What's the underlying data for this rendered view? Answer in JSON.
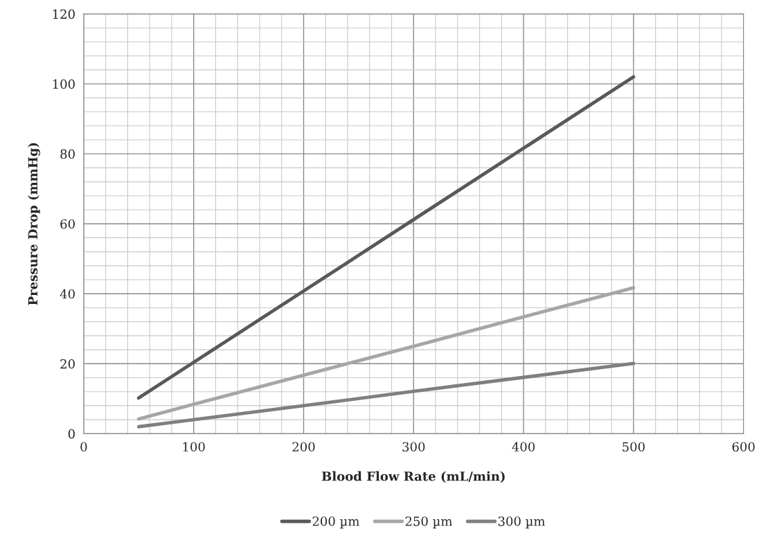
{
  "chart_data": {
    "type": "line",
    "xlabel": "Blood Flow Rate (mL/min)",
    "ylabel": "Pressure Drop (mmHg)",
    "x": [
      50,
      100,
      200,
      300,
      400,
      500
    ],
    "series": [
      {
        "name": "200 µm",
        "color": "#595959",
        "values": [
          10.2,
          20.4,
          40.8,
          61.2,
          81.6,
          102
        ]
      },
      {
        "name": "250 µm",
        "color": "#a6a6a6",
        "values": [
          4.2,
          8.4,
          16.7,
          25.0,
          33.4,
          41.7
        ]
      },
      {
        "name": "300 µm",
        "color": "#7f7f7f",
        "values": [
          2.0,
          4.0,
          8.0,
          12.1,
          16.1,
          20.1
        ]
      }
    ],
    "xlim": [
      0,
      600
    ],
    "xticks": [
      0,
      100,
      200,
      300,
      400,
      500,
      600
    ],
    "ylim": [
      0,
      120
    ],
    "yticks": [
      0,
      20,
      40,
      60,
      80,
      100,
      120
    ],
    "grid": true,
    "legend": "bottom",
    "marker": "none",
    "line_style": "solid"
  }
}
